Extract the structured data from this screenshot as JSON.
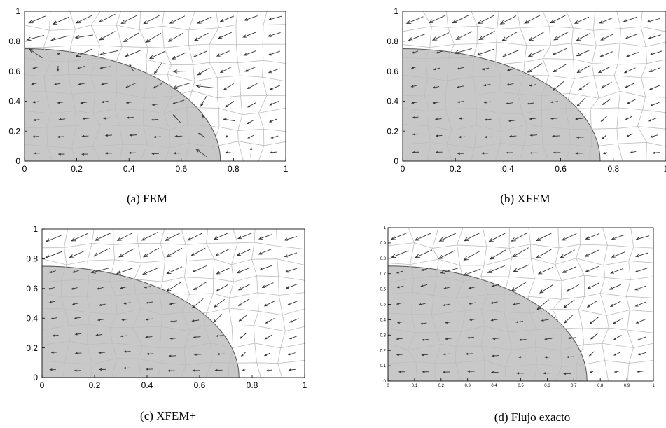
{
  "figure": {
    "captions": [
      "(a) FEM",
      "(b) XFEM",
      "(c) XFEM+",
      "(d) Flujo exacto"
    ]
  },
  "chart_data": [
    {
      "type": "quiver",
      "caption": "(a) FEM",
      "title": "",
      "xlabel": "",
      "ylabel": "",
      "xlim": [
        0,
        1
      ],
      "ylim": [
        0,
        1
      ],
      "xticks": [
        "0",
        "0.2",
        "0.4",
        "0.6",
        "0.8",
        "1"
      ],
      "yticks": [
        "0",
        "0.2",
        "0.4",
        "0.6",
        "0.8",
        "1"
      ],
      "inclusion": {
        "shape": "quarter-ellipse",
        "center": [
          0,
          0
        ],
        "rx": 0.75,
        "ry": 0.75
      },
      "field": "approximate",
      "grid": "distorted-mesh"
    },
    {
      "type": "quiver",
      "caption": "(b) XFEM",
      "title": "",
      "xlabel": "",
      "ylabel": "",
      "xlim": [
        0,
        1
      ],
      "ylim": [
        0,
        1
      ],
      "xticks": [
        "0",
        "0.2",
        "0.4",
        "0.6",
        "0.8",
        "1"
      ],
      "yticks": [
        "0",
        "0.2",
        "0.4",
        "0.6",
        "0.8",
        "1"
      ],
      "inclusion": {
        "shape": "quarter-ellipse",
        "center": [
          0,
          0
        ],
        "rx": 0.75,
        "ry": 0.75
      },
      "field": "approximate",
      "grid": "distorted-mesh"
    },
    {
      "type": "quiver",
      "caption": "(c) XFEM+",
      "title": "",
      "xlabel": "",
      "ylabel": "",
      "xlim": [
        0,
        1
      ],
      "ylim": [
        0,
        1
      ],
      "xticks": [
        "0",
        "0.2",
        "0.4",
        "0.6",
        "0.8",
        "1"
      ],
      "yticks": [
        "0",
        "0.2",
        "0.4",
        "0.6",
        "0.8",
        "1"
      ],
      "inclusion": {
        "shape": "quarter-ellipse",
        "center": [
          0,
          0
        ],
        "rx": 0.75,
        "ry": 0.75
      },
      "field": "approximate",
      "grid": "distorted-mesh"
    },
    {
      "type": "quiver",
      "caption": "(d) Flujo exacto",
      "title": "",
      "xlabel": "",
      "ylabel": "",
      "xlim": [
        0,
        1
      ],
      "ylim": [
        0,
        1
      ],
      "xticks": [
        "0",
        "0.1",
        "0.2",
        "0.3",
        "0.4",
        "0.5",
        "0.6",
        "0.7",
        "0.8",
        "0.9",
        "1"
      ],
      "yticks": [
        "0",
        "0.1",
        "0.2",
        "0.3",
        "0.4",
        "0.5",
        "0.6",
        "0.7",
        "0.8",
        "0.9",
        "1"
      ],
      "inclusion": {
        "shape": "quarter-ellipse",
        "center": [
          0,
          0
        ],
        "rx": 0.75,
        "ry": 0.75
      },
      "field": "exact",
      "grid": "distorted-mesh"
    }
  ],
  "colors": {
    "inclusion_fill": "#c8c8c8",
    "inclusion_edge": "#555555",
    "mesh": "#bdbdbd",
    "arrow": "#333333",
    "axes": "#000000"
  }
}
